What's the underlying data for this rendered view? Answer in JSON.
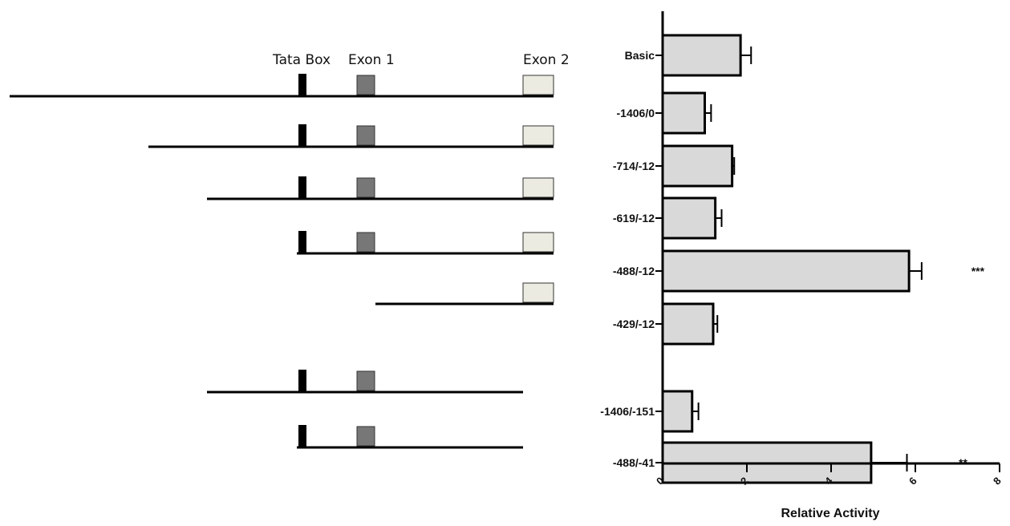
{
  "diagram": {
    "header_labels": {
      "tata_box": "Tata Box",
      "exon1": "Exon 1",
      "exon2": "Exon 2"
    },
    "constructs": [
      {
        "name": "-1406/0",
        "has_tata": true,
        "has_exon1": true,
        "has_exon2": true
      },
      {
        "name": "-714/-12",
        "has_tata": true,
        "has_exon1": true,
        "has_exon2": true
      },
      {
        "name": "-619/-12",
        "has_tata": true,
        "has_exon1": true,
        "has_exon2": true
      },
      {
        "name": "-488/-12",
        "has_tata": true,
        "has_exon1": true,
        "has_exon2": true
      },
      {
        "name": "-429/-12",
        "has_tata": false,
        "has_exon1": false,
        "has_exon2": true
      },
      {
        "name": "-1406/-151",
        "has_tata": true,
        "has_exon1": true,
        "has_exon2": false
      },
      {
        "name": "-488/-41",
        "has_tata": true,
        "has_exon1": true,
        "has_exon2": false
      }
    ],
    "colors": {
      "line": "#000000",
      "tata": "#000000",
      "exon1": "#777777",
      "exon2": "#ecebe1"
    }
  },
  "chart_data": {
    "type": "bar",
    "orientation": "horizontal",
    "categories": [
      "Basic",
      "-1406/0",
      "-714/-12",
      "-619/-12",
      "-488/-12",
      "-429/-12",
      "-1406/-151",
      "-488/-41"
    ],
    "values": [
      1.85,
      1.0,
      1.65,
      1.25,
      5.85,
      1.2,
      0.7,
      4.95
    ],
    "errors": [
      0.25,
      0.15,
      0.05,
      0.15,
      0.3,
      0.1,
      0.15,
      0.85
    ],
    "significance": [
      "",
      "",
      "",
      "",
      "***",
      "",
      "",
      "**"
    ],
    "xlabel": "Relative Activity",
    "ylabel": "",
    "title": "",
    "xlim": [
      0,
      8
    ],
    "xticks": [
      "0",
      "2",
      "4",
      "6",
      "8"
    ],
    "grid": false,
    "colors": {
      "bar": "#d9d9d9",
      "edge": "#000000"
    }
  }
}
